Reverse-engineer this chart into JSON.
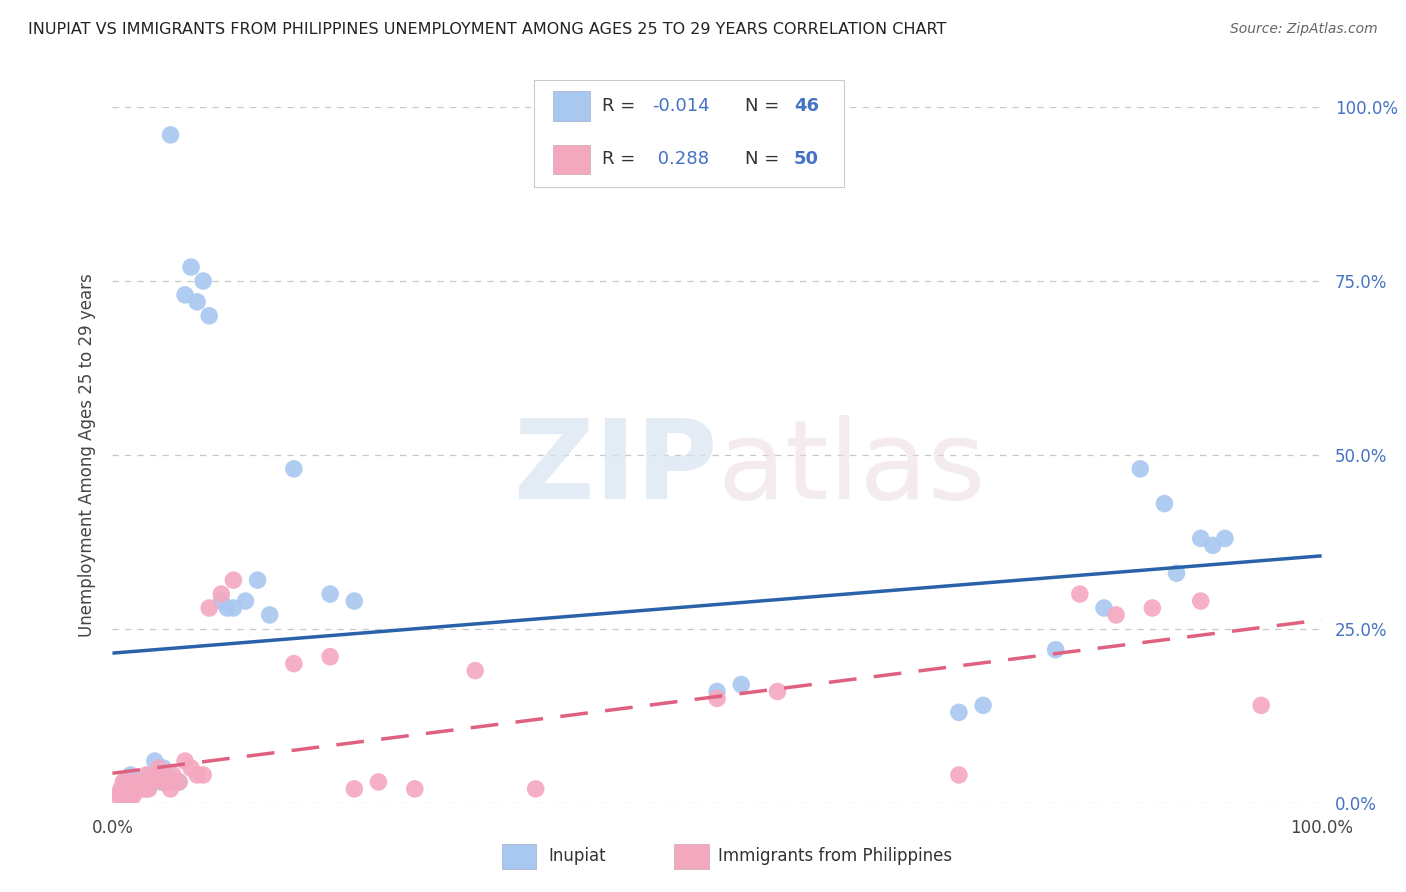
{
  "title": "INUPIAT VS IMMIGRANTS FROM PHILIPPINES UNEMPLOYMENT AMONG AGES 25 TO 29 YEARS CORRELATION CHART",
  "source": "Source: ZipAtlas.com",
  "ylabel": "Unemployment Among Ages 25 to 29 years",
  "xlim": [
    0.0,
    1.0
  ],
  "ylim": [
    0.0,
    1.0
  ],
  "xtick_labels": [
    "0.0%",
    "100.0%"
  ],
  "ytick_labels": [
    "0.0%",
    "25.0%",
    "50.0%",
    "75.0%",
    "100.0%"
  ],
  "ytick_values": [
    0.0,
    0.25,
    0.5,
    0.75,
    1.0
  ],
  "watermark_zip": "ZIP",
  "watermark_atlas": "atlas",
  "inupiat_color": "#a8c8f0",
  "philippines_color": "#f4a8c0",
  "inupiat_line_color": "#2962a8",
  "philippines_line_color": "#e06080",
  "grid_color": "#c8c8c8",
  "background_color": "#ffffff",
  "inupiat_x": [
    0.005,
    0.008,
    0.01,
    0.012,
    0.015,
    0.018,
    0.02,
    0.022,
    0.025,
    0.028,
    0.03,
    0.032,
    0.035,
    0.038,
    0.04,
    0.042,
    0.045,
    0.048,
    0.05,
    0.055,
    0.06,
    0.065,
    0.07,
    0.075,
    0.08,
    0.09,
    0.095,
    0.1,
    0.11,
    0.12,
    0.13,
    0.15,
    0.18,
    0.2,
    0.5,
    0.52,
    0.7,
    0.72,
    0.78,
    0.82,
    0.85,
    0.87,
    0.88,
    0.9,
    0.91,
    0.92
  ],
  "inupiat_y": [
    0.01,
    0.02,
    0.03,
    0.02,
    0.04,
    0.03,
    0.02,
    0.03,
    0.03,
    0.02,
    0.04,
    0.03,
    0.06,
    0.04,
    0.03,
    0.05,
    0.04,
    0.96,
    0.03,
    0.03,
    0.73,
    0.77,
    0.72,
    0.75,
    0.7,
    0.29,
    0.28,
    0.28,
    0.29,
    0.32,
    0.27,
    0.48,
    0.3,
    0.29,
    0.16,
    0.17,
    0.13,
    0.14,
    0.22,
    0.28,
    0.48,
    0.43,
    0.33,
    0.38,
    0.37,
    0.38
  ],
  "philippines_x": [
    0.005,
    0.007,
    0.008,
    0.009,
    0.01,
    0.011,
    0.012,
    0.013,
    0.014,
    0.015,
    0.016,
    0.017,
    0.018,
    0.019,
    0.02,
    0.022,
    0.025,
    0.028,
    0.03,
    0.032,
    0.035,
    0.038,
    0.04,
    0.042,
    0.045,
    0.048,
    0.05,
    0.055,
    0.06,
    0.065,
    0.07,
    0.075,
    0.08,
    0.09,
    0.1,
    0.15,
    0.18,
    0.2,
    0.22,
    0.25,
    0.3,
    0.35,
    0.5,
    0.55,
    0.7,
    0.8,
    0.83,
    0.86,
    0.9,
    0.95
  ],
  "philippines_y": [
    0.01,
    0.02,
    0.01,
    0.03,
    0.02,
    0.01,
    0.02,
    0.03,
    0.02,
    0.01,
    0.02,
    0.01,
    0.02,
    0.03,
    0.02,
    0.02,
    0.02,
    0.04,
    0.02,
    0.03,
    0.04,
    0.05,
    0.04,
    0.03,
    0.03,
    0.02,
    0.04,
    0.03,
    0.06,
    0.05,
    0.04,
    0.04,
    0.28,
    0.3,
    0.32,
    0.2,
    0.21,
    0.02,
    0.03,
    0.02,
    0.19,
    0.02,
    0.15,
    0.16,
    0.04,
    0.3,
    0.27,
    0.28,
    0.29,
    0.14
  ]
}
